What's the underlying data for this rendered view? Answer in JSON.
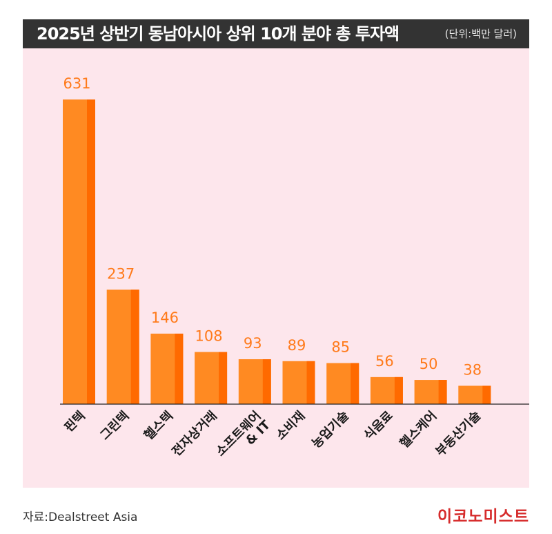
{
  "header": {
    "title": "2025년 상반기 동남아시아 상위 10개 분야 총 투자액",
    "unit": "(단위:백만 달러)"
  },
  "footer": {
    "source": "자료:Dealstreet Asia",
    "brand": "이코노미스트"
  },
  "colors": {
    "bar": "#ff8a22",
    "bar_shade": "#ff6a00",
    "value_label": "#ff7a1a",
    "plot_background": "#fde6ec",
    "title_background": "#333333",
    "brand": "#d62b2b"
  },
  "chart_data": {
    "type": "bar",
    "title": "2025년 상반기 동남아시아 상위 10개 분야 총 투자액",
    "unit": "(단위:백만 달러)",
    "categories": [
      "핀텍",
      "그린텍",
      "헬스텍",
      "전자상거래",
      "소프트웨어 & IT",
      "소비재",
      "농업기술",
      "식음료",
      "헬스케어",
      "부동산기술"
    ],
    "category_lines": [
      [
        "핀텍"
      ],
      [
        "그린텍"
      ],
      [
        "헬스텍"
      ],
      [
        "전자상거래"
      ],
      [
        "소프트웨어",
        "& IT"
      ],
      [
        "소비재"
      ],
      [
        "농업기술"
      ],
      [
        "식음료"
      ],
      [
        "헬스케어"
      ],
      [
        "부동산기술"
      ]
    ],
    "values": [
      631,
      237,
      146,
      108,
      93,
      89,
      85,
      56,
      50,
      38
    ],
    "value_labels": [
      "631",
      "237",
      "146",
      "108",
      "93",
      "89",
      "85",
      "56",
      "50",
      "38"
    ],
    "ylim": [
      0,
      631
    ],
    "grid": false,
    "legend": "none"
  }
}
